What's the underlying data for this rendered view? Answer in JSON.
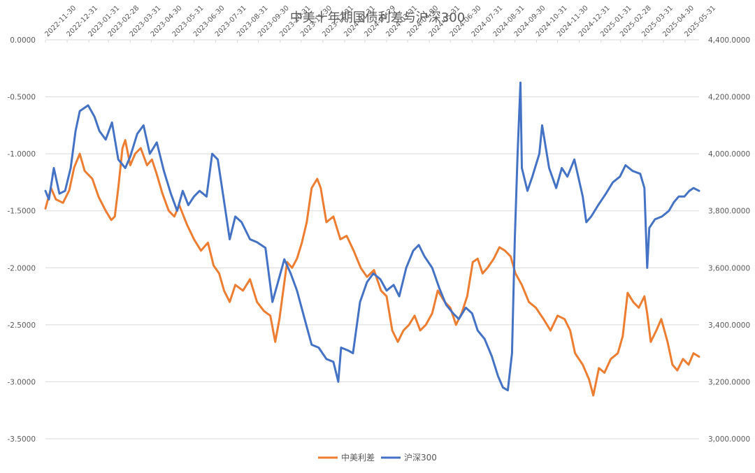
{
  "chart_data": {
    "type": "line",
    "title": "中美十年期国债利差与沪深300",
    "x_ticks": [
      "2022-11-30",
      "2022-12-31",
      "2023-01-31",
      "2023-02-28",
      "2023-03-31",
      "2023-04-30",
      "2023-05-31",
      "2023-06-30",
      "2023-07-31",
      "2023-08-31",
      "2023-09-30",
      "2023-10-31",
      "2023-11-30",
      "2023-12-31",
      "2024-01-31",
      "2024-02-29",
      "2024-03-31",
      "2024-04-30",
      "2024-05-31",
      "2024-06-30",
      "2024-07-31",
      "2024-08-31",
      "2024-09-30",
      "2024-10-31",
      "2024-11-30",
      "2024-12-31",
      "2025-01-31",
      "2025-02-28",
      "2025-03-31",
      "2025-04-30",
      "2025-05-31"
    ],
    "x_range": [
      "2022-11-30",
      "2025-06-20"
    ],
    "y_left": {
      "ticks": [
        "0.0000",
        "-0.5000",
        "-1.0000",
        "-1.5000",
        "-2.0000",
        "-2.5000",
        "-3.0000",
        "-3.5000"
      ],
      "ylim": [
        -3.5,
        0
      ]
    },
    "y_right": {
      "ticks": [
        "4,400.0000",
        "4,200.0000",
        "4,000.0000",
        "3,800.0000",
        "3,600.0000",
        "3,400.0000",
        "3,200.0000",
        "3,000.0000"
      ],
      "ylim": [
        3000,
        4400
      ]
    },
    "grid": "horizontal",
    "legend_position": "bottom",
    "series": [
      {
        "name": "中美利差",
        "axis": "left",
        "color": "#ED7D31",
        "points": [
          [
            "2022-11-30",
            -1.48
          ],
          [
            "2022-12-08",
            -1.3
          ],
          [
            "2022-12-15",
            -1.4
          ],
          [
            "2022-12-25",
            -1.43
          ],
          [
            "2023-01-03",
            -1.32
          ],
          [
            "2023-01-10",
            -1.12
          ],
          [
            "2023-01-18",
            -1.0
          ],
          [
            "2023-01-25",
            -1.15
          ],
          [
            "2023-02-05",
            -1.22
          ],
          [
            "2023-02-14",
            -1.38
          ],
          [
            "2023-02-24",
            -1.5
          ],
          [
            "2023-03-04",
            -1.58
          ],
          [
            "2023-03-09",
            -1.55
          ],
          [
            "2023-03-14",
            -1.3
          ],
          [
            "2023-03-20",
            -0.95
          ],
          [
            "2023-03-24",
            -0.88
          ],
          [
            "2023-03-31",
            -1.1
          ],
          [
            "2023-04-07",
            -1.0
          ],
          [
            "2023-04-15",
            -0.95
          ],
          [
            "2023-04-24",
            -1.1
          ],
          [
            "2023-05-01",
            -1.05
          ],
          [
            "2023-05-08",
            -1.18
          ],
          [
            "2023-05-16",
            -1.35
          ],
          [
            "2023-05-25",
            -1.5
          ],
          [
            "2023-06-02",
            -1.55
          ],
          [
            "2023-06-09",
            -1.45
          ],
          [
            "2023-06-20",
            -1.62
          ],
          [
            "2023-06-30",
            -1.75
          ],
          [
            "2023-07-10",
            -1.85
          ],
          [
            "2023-07-20",
            -1.78
          ],
          [
            "2023-07-28",
            -1.98
          ],
          [
            "2023-08-05",
            -2.05
          ],
          [
            "2023-08-12",
            -2.2
          ],
          [
            "2023-08-20",
            -2.3
          ],
          [
            "2023-08-28",
            -2.15
          ],
          [
            "2023-09-08",
            -2.2
          ],
          [
            "2023-09-18",
            -2.1
          ],
          [
            "2023-09-28",
            -2.3
          ],
          [
            "2023-10-08",
            -2.38
          ],
          [
            "2023-10-17",
            -2.42
          ],
          [
            "2023-10-24",
            -2.65
          ],
          [
            "2023-10-30",
            -2.45
          ],
          [
            "2023-11-04",
            -2.22
          ],
          [
            "2023-11-10",
            -1.95
          ],
          [
            "2023-11-17",
            -2.0
          ],
          [
            "2023-11-24",
            -1.92
          ],
          [
            "2023-12-01",
            -1.78
          ],
          [
            "2023-12-08",
            -1.6
          ],
          [
            "2023-12-15",
            -1.3
          ],
          [
            "2023-12-23",
            -1.22
          ],
          [
            "2023-12-28",
            -1.3
          ],
          [
            "2024-01-05",
            -1.6
          ],
          [
            "2024-01-15",
            -1.55
          ],
          [
            "2024-01-25",
            -1.75
          ],
          [
            "2024-02-03",
            -1.72
          ],
          [
            "2024-02-13",
            -1.85
          ],
          [
            "2024-02-23",
            -2.0
          ],
          [
            "2024-03-03",
            -2.08
          ],
          [
            "2024-03-13",
            -2.02
          ],
          [
            "2024-03-23",
            -2.2
          ],
          [
            "2024-03-31",
            -2.25
          ],
          [
            "2024-04-08",
            -2.55
          ],
          [
            "2024-04-16",
            -2.65
          ],
          [
            "2024-04-24",
            -2.55
          ],
          [
            "2024-05-02",
            -2.5
          ],
          [
            "2024-05-10",
            -2.42
          ],
          [
            "2024-05-18",
            -2.55
          ],
          [
            "2024-05-26",
            -2.5
          ],
          [
            "2024-06-04",
            -2.4
          ],
          [
            "2024-06-12",
            -2.2
          ],
          [
            "2024-06-22",
            -2.3
          ],
          [
            "2024-06-30",
            -2.35
          ],
          [
            "2024-07-08",
            -2.5
          ],
          [
            "2024-07-16",
            -2.4
          ],
          [
            "2024-07-24",
            -2.25
          ],
          [
            "2024-08-01",
            -1.95
          ],
          [
            "2024-08-08",
            -1.92
          ],
          [
            "2024-08-15",
            -2.05
          ],
          [
            "2024-08-22",
            -2.0
          ],
          [
            "2024-08-31",
            -1.92
          ],
          [
            "2024-09-08",
            -1.82
          ],
          [
            "2024-09-16",
            -1.85
          ],
          [
            "2024-09-24",
            -1.9
          ],
          [
            "2024-10-01",
            -2.05
          ],
          [
            "2024-10-10",
            -2.15
          ],
          [
            "2024-10-20",
            -2.3
          ],
          [
            "2024-10-30",
            -2.35
          ],
          [
            "2024-11-10",
            -2.45
          ],
          [
            "2024-11-20",
            -2.55
          ],
          [
            "2024-11-30",
            -2.42
          ],
          [
            "2024-12-10",
            -2.45
          ],
          [
            "2024-12-18",
            -2.55
          ],
          [
            "2024-12-25",
            -2.75
          ],
          [
            "2025-01-05",
            -2.85
          ],
          [
            "2025-01-14",
            -2.98
          ],
          [
            "2025-01-20",
            -3.12
          ],
          [
            "2025-01-28",
            -2.88
          ],
          [
            "2025-02-05",
            -2.92
          ],
          [
            "2025-02-14",
            -2.8
          ],
          [
            "2025-02-24",
            -2.75
          ],
          [
            "2025-03-03",
            -2.6
          ],
          [
            "2025-03-10",
            -2.22
          ],
          [
            "2025-03-18",
            -2.3
          ],
          [
            "2025-03-26",
            -2.35
          ],
          [
            "2025-04-03",
            -2.25
          ],
          [
            "2025-04-07",
            -2.4
          ],
          [
            "2025-04-12",
            -2.65
          ],
          [
            "2025-04-20",
            -2.55
          ],
          [
            "2025-04-27",
            -2.45
          ],
          [
            "2025-05-06",
            -2.65
          ],
          [
            "2025-05-13",
            -2.85
          ],
          [
            "2025-05-20",
            -2.9
          ],
          [
            "2025-05-28",
            -2.8
          ],
          [
            "2025-06-05",
            -2.85
          ],
          [
            "2025-06-12",
            -2.75
          ],
          [
            "2025-06-20",
            -2.78
          ]
        ]
      },
      {
        "name": "沪深300",
        "axis": "right",
        "color": "#4472C4",
        "points": [
          [
            "2022-11-30",
            3870
          ],
          [
            "2022-12-05",
            3840
          ],
          [
            "2022-12-12",
            3950
          ],
          [
            "2022-12-20",
            3860
          ],
          [
            "2022-12-28",
            3870
          ],
          [
            "2023-01-05",
            3950
          ],
          [
            "2023-01-12",
            4080
          ],
          [
            "2023-01-18",
            4150
          ],
          [
            "2023-01-30",
            4170
          ],
          [
            "2023-02-08",
            4130
          ],
          [
            "2023-02-15",
            4080
          ],
          [
            "2023-02-24",
            4050
          ],
          [
            "2023-03-05",
            4110
          ],
          [
            "2023-03-14",
            3980
          ],
          [
            "2023-03-24",
            3950
          ],
          [
            "2023-03-31",
            3990
          ],
          [
            "2023-04-10",
            4070
          ],
          [
            "2023-04-19",
            4100
          ],
          [
            "2023-04-28",
            4000
          ],
          [
            "2023-05-08",
            4040
          ],
          [
            "2023-05-18",
            3940
          ],
          [
            "2023-05-28",
            3860
          ],
          [
            "2023-06-06",
            3800
          ],
          [
            "2023-06-14",
            3870
          ],
          [
            "2023-06-22",
            3820
          ],
          [
            "2023-06-30",
            3850
          ],
          [
            "2023-07-08",
            3870
          ],
          [
            "2023-07-18",
            3850
          ],
          [
            "2023-07-26",
            4000
          ],
          [
            "2023-08-03",
            3980
          ],
          [
            "2023-08-11",
            3850
          ],
          [
            "2023-08-20",
            3700
          ],
          [
            "2023-08-28",
            3780
          ],
          [
            "2023-09-06",
            3760
          ],
          [
            "2023-09-18",
            3700
          ],
          [
            "2023-09-28",
            3690
          ],
          [
            "2023-10-10",
            3670
          ],
          [
            "2023-10-20",
            3480
          ],
          [
            "2023-10-28",
            3550
          ],
          [
            "2023-11-06",
            3630
          ],
          [
            "2023-11-15",
            3580
          ],
          [
            "2023-11-24",
            3520
          ],
          [
            "2023-12-05",
            3420
          ],
          [
            "2023-12-15",
            3330
          ],
          [
            "2023-12-25",
            3320
          ],
          [
            "2024-01-05",
            3280
          ],
          [
            "2024-01-15",
            3270
          ],
          [
            "2024-01-22",
            3200
          ],
          [
            "2024-01-26",
            3320
          ],
          [
            "2024-02-05",
            3310
          ],
          [
            "2024-02-12",
            3300
          ],
          [
            "2024-02-22",
            3480
          ],
          [
            "2024-03-03",
            3550
          ],
          [
            "2024-03-12",
            3580
          ],
          [
            "2024-03-22",
            3560
          ],
          [
            "2024-03-31",
            3520
          ],
          [
            "2024-04-10",
            3540
          ],
          [
            "2024-04-18",
            3500
          ],
          [
            "2024-04-28",
            3600
          ],
          [
            "2024-05-08",
            3660
          ],
          [
            "2024-05-16",
            3680
          ],
          [
            "2024-05-24",
            3640
          ],
          [
            "2024-06-04",
            3600
          ],
          [
            "2024-06-14",
            3530
          ],
          [
            "2024-06-24",
            3470
          ],
          [
            "2024-07-04",
            3440
          ],
          [
            "2024-07-12",
            3420
          ],
          [
            "2024-07-22",
            3460
          ],
          [
            "2024-07-31",
            3440
          ],
          [
            "2024-08-08",
            3380
          ],
          [
            "2024-08-18",
            3350
          ],
          [
            "2024-08-28",
            3290
          ],
          [
            "2024-09-06",
            3220
          ],
          [
            "2024-09-13",
            3180
          ],
          [
            "2024-09-20",
            3170
          ],
          [
            "2024-09-26",
            3300
          ],
          [
            "2024-09-30",
            3700
          ],
          [
            "2024-10-04",
            4000
          ],
          [
            "2024-10-08",
            4250
          ],
          [
            "2024-10-10",
            3950
          ],
          [
            "2024-10-18",
            3870
          ],
          [
            "2024-10-25",
            3920
          ],
          [
            "2024-11-04",
            4000
          ],
          [
            "2024-11-08",
            4100
          ],
          [
            "2024-11-18",
            3950
          ],
          [
            "2024-11-28",
            3880
          ],
          [
            "2024-12-06",
            3950
          ],
          [
            "2024-12-14",
            3920
          ],
          [
            "2024-12-24",
            3980
          ],
          [
            "2025-01-05",
            3850
          ],
          [
            "2025-01-10",
            3760
          ],
          [
            "2025-01-17",
            3780
          ],
          [
            "2025-01-27",
            3820
          ],
          [
            "2025-02-07",
            3860
          ],
          [
            "2025-02-17",
            3900
          ],
          [
            "2025-02-27",
            3920
          ],
          [
            "2025-03-07",
            3960
          ],
          [
            "2025-03-17",
            3940
          ],
          [
            "2025-03-28",
            3930
          ],
          [
            "2025-04-03",
            3880
          ],
          [
            "2025-04-07",
            3600
          ],
          [
            "2025-04-10",
            3740
          ],
          [
            "2025-04-18",
            3770
          ],
          [
            "2025-04-28",
            3780
          ],
          [
            "2025-05-08",
            3800
          ],
          [
            "2025-05-15",
            3830
          ],
          [
            "2025-05-22",
            3850
          ],
          [
            "2025-05-30",
            3850
          ],
          [
            "2025-06-06",
            3870
          ],
          [
            "2025-06-12",
            3880
          ],
          [
            "2025-06-20",
            3870
          ]
        ]
      }
    ]
  }
}
